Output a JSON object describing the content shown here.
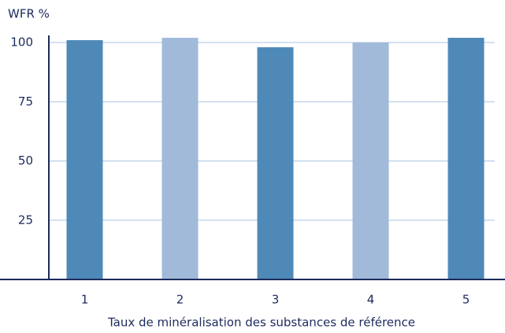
{
  "chart_data": {
    "type": "bar",
    "y_label": "WFR %",
    "x_label": "Taux de minéralisation des substances de référence",
    "categories": [
      "1",
      "2",
      "3",
      "4",
      "5"
    ],
    "values": [
      101,
      102,
      98,
      100,
      102
    ],
    "colors": [
      "#4f89b8",
      "#a1bad9",
      "#4f89b8",
      "#a1bad9",
      "#4f89b8"
    ],
    "ylim": [
      0,
      103
    ],
    "yticks": [
      25,
      50,
      75,
      100
    ],
    "grid": true
  }
}
